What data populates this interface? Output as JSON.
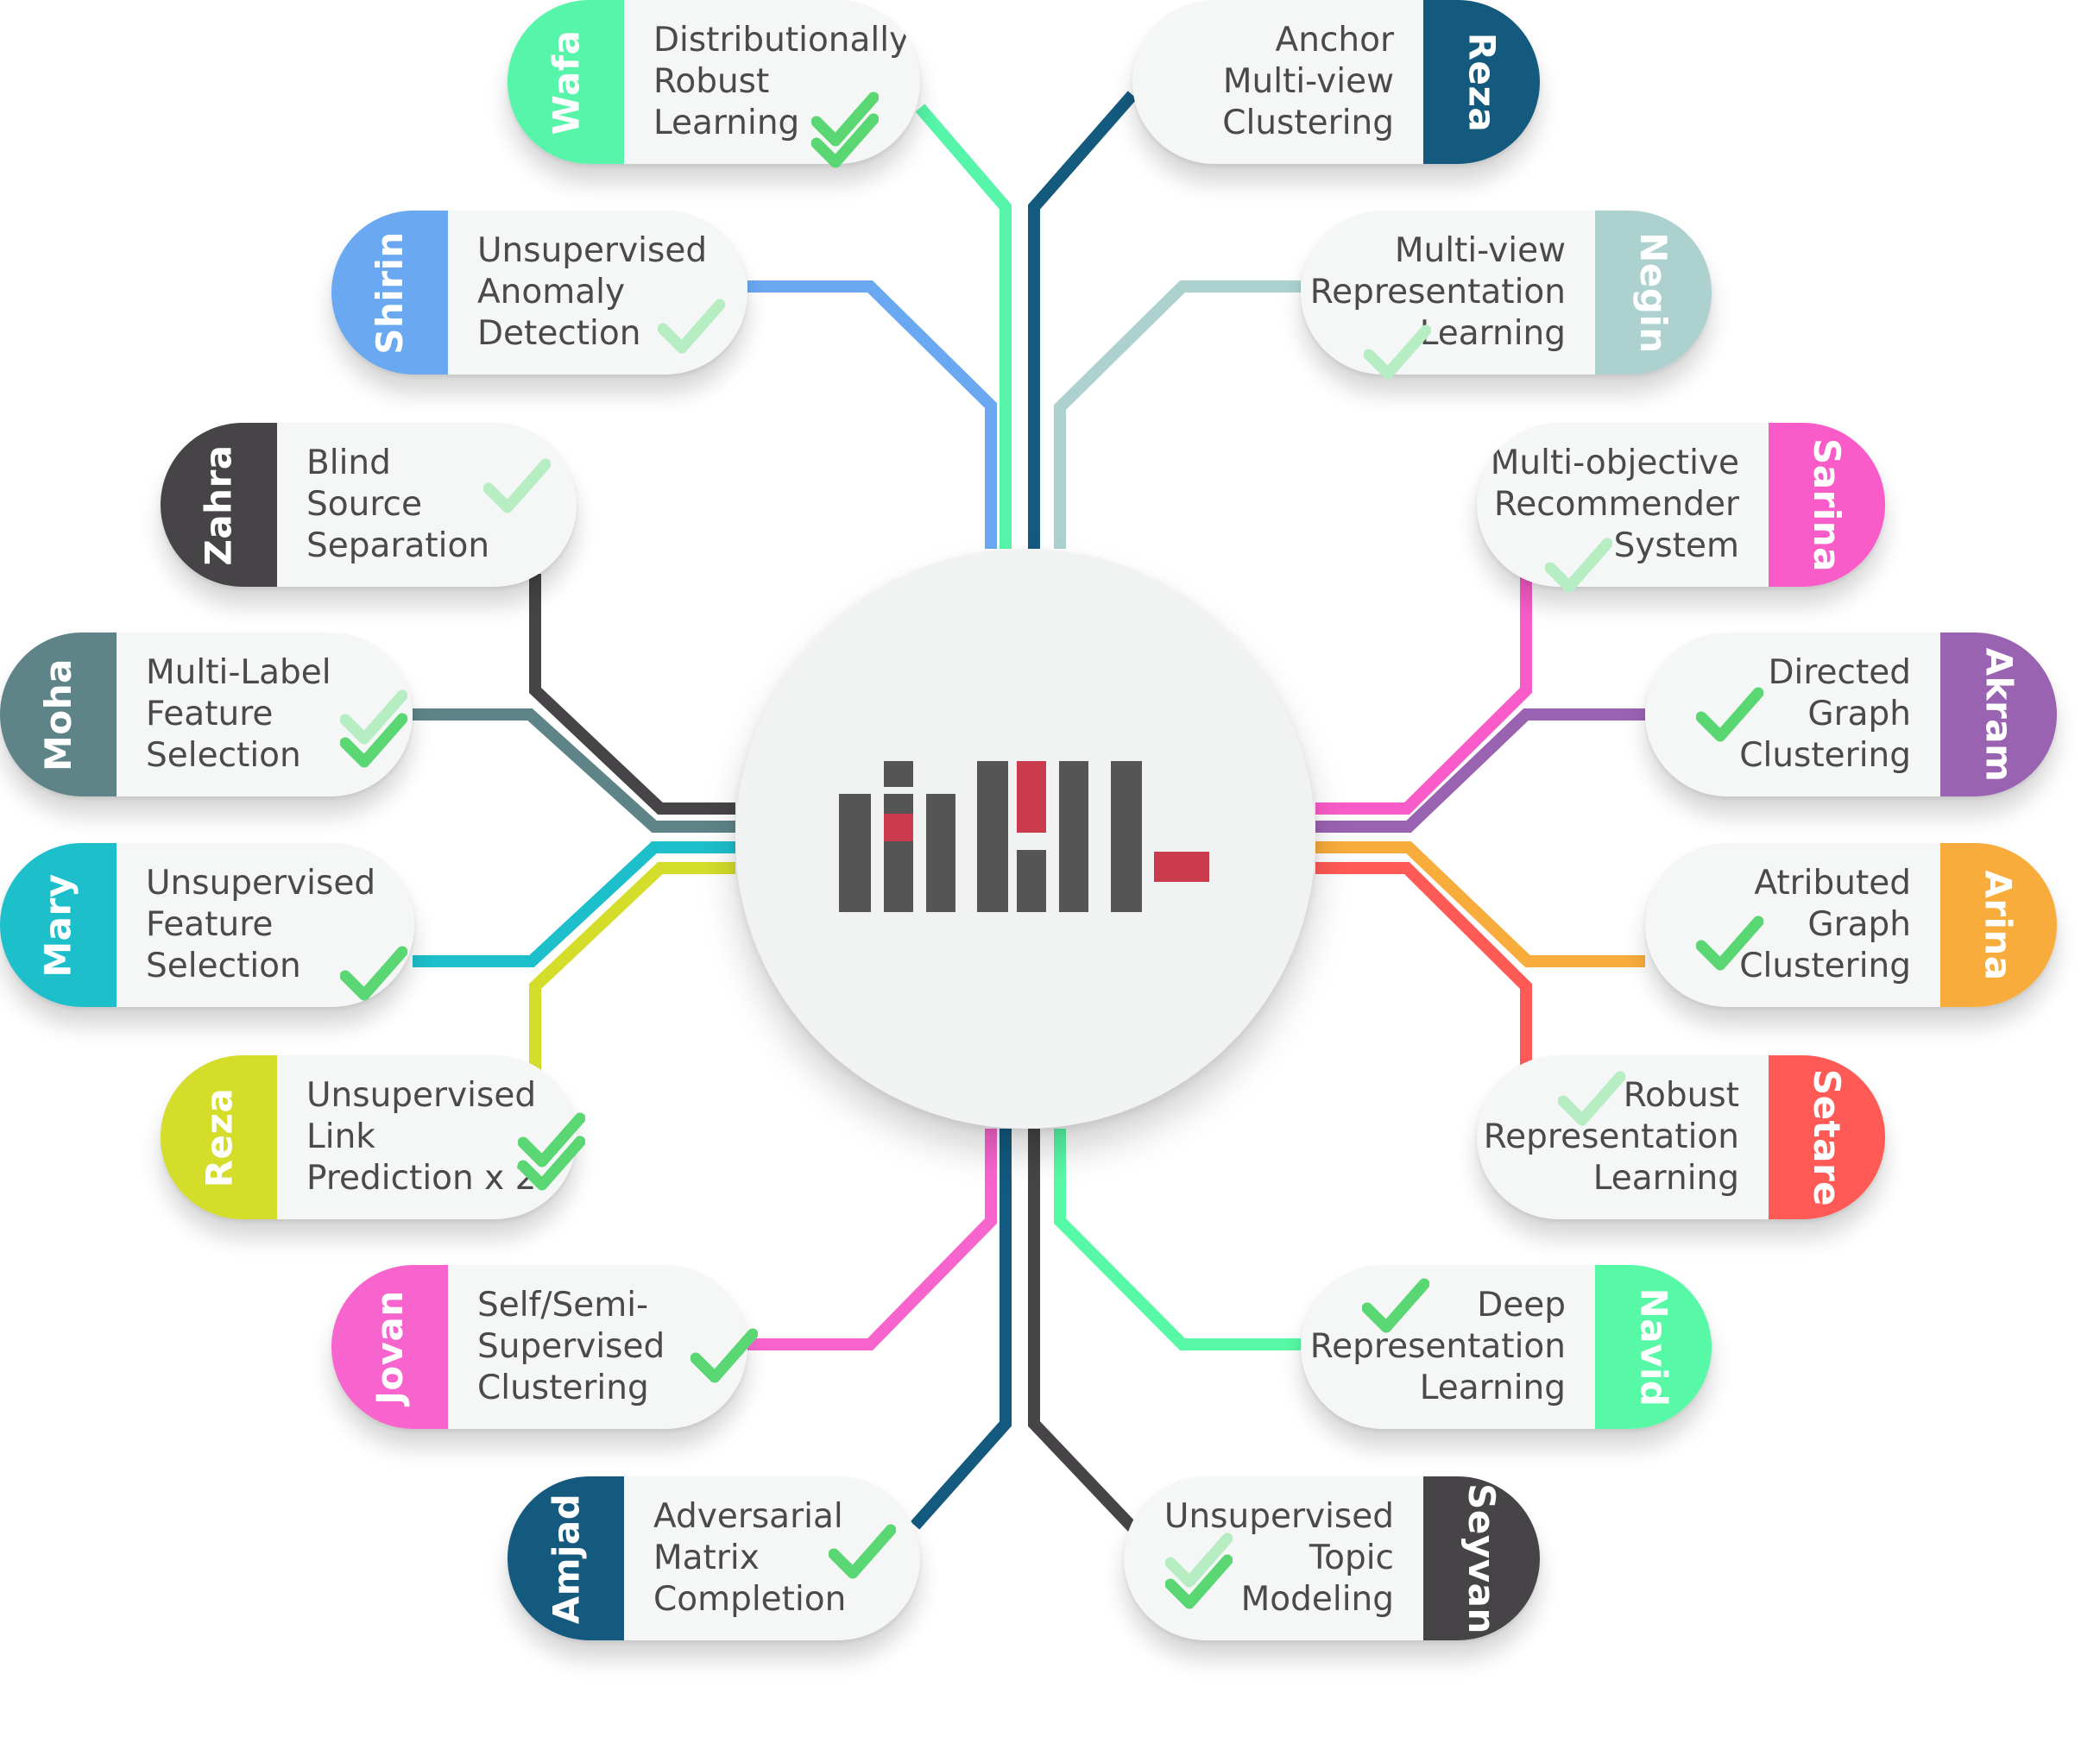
{
  "colors": {
    "wafa": "#56f5a9",
    "reza_top": "#145a7e",
    "shirin": "#6aa8f2",
    "negin": "#acd1cf",
    "zahra": "#474448",
    "sarina": "#f95cc8",
    "moha": "#5e8487",
    "akram": "#9a63b2",
    "mary": "#1dbfcb",
    "arina": "#f8ac3b",
    "reza_mid": "#d3dd2a",
    "setare": "#ff5a55",
    "jovan": "#f764cd",
    "navid": "#58f9a6",
    "amjad": "#145a7e",
    "seyvan": "#474448",
    "check": "#5ad672",
    "check_light": "#b6edc3",
    "logo_gray": "#555555",
    "logo_red": "#cc3a4d"
  },
  "logo": {
    "name": "aml-logo"
  },
  "nodes": [
    {
      "id": "wafa",
      "person": "Wafa",
      "lines": [
        "Distributionally",
        "Robust",
        "Learning"
      ],
      "checks": 2
    },
    {
      "id": "reza-top",
      "person": "Reza",
      "lines": [
        "Anchor",
        "Multi-view",
        "Clustering"
      ],
      "checks": 0
    },
    {
      "id": "shirin",
      "person": "Shirin",
      "lines": [
        "Unsupervised",
        "Anomaly",
        "Detection"
      ],
      "checks": 1
    },
    {
      "id": "negin",
      "person": "Negin",
      "lines": [
        "Multi-view",
        "Representation",
        "Learning"
      ],
      "checks": 1
    },
    {
      "id": "zahra",
      "person": "Zahra",
      "lines": [
        "Blind",
        "Source",
        "Separation"
      ],
      "checks": 1
    },
    {
      "id": "sarina",
      "person": "Sarina",
      "lines": [
        "Multi-objective",
        "Recommender",
        "System"
      ],
      "checks": 1
    },
    {
      "id": "moha",
      "person": "Moha",
      "lines": [
        "Multi-Label",
        "Feature",
        "Selection"
      ],
      "checks": 2
    },
    {
      "id": "akram",
      "person": "Akram",
      "lines": [
        "Directed",
        "Graph",
        "Clustering"
      ],
      "checks": 1
    },
    {
      "id": "mary",
      "person": "Mary",
      "lines": [
        "Unsupervised",
        "Feature",
        "Selection"
      ],
      "checks": 1
    },
    {
      "id": "arina",
      "person": "Arina",
      "lines": [
        "Atributed",
        "Graph",
        "Clustering"
      ],
      "checks": 1
    },
    {
      "id": "reza-mid",
      "person": "Reza",
      "lines": [
        "Unsupervised",
        "Link",
        "Prediction x 2"
      ],
      "checks": 2
    },
    {
      "id": "setare",
      "person": "Setare",
      "lines": [
        "Robust",
        "Representation",
        "Learning"
      ],
      "checks": 1
    },
    {
      "id": "jovan",
      "person": "Jovan",
      "lines": [
        "Self/Semi-",
        "Supervised",
        "Clustering"
      ],
      "checks": 1
    },
    {
      "id": "navid",
      "person": "Navid",
      "lines": [
        "Deep",
        "Representation",
        "Learning"
      ],
      "checks": 1
    },
    {
      "id": "amjad",
      "person": "Amjad",
      "lines": [
        "Adversarial",
        "Matrix",
        "Completion"
      ],
      "checks": 1
    },
    {
      "id": "seyvan",
      "person": "Seyvan",
      "lines": [
        "Unsupervised",
        "Topic",
        "Modeling"
      ],
      "checks": 2
    }
  ]
}
